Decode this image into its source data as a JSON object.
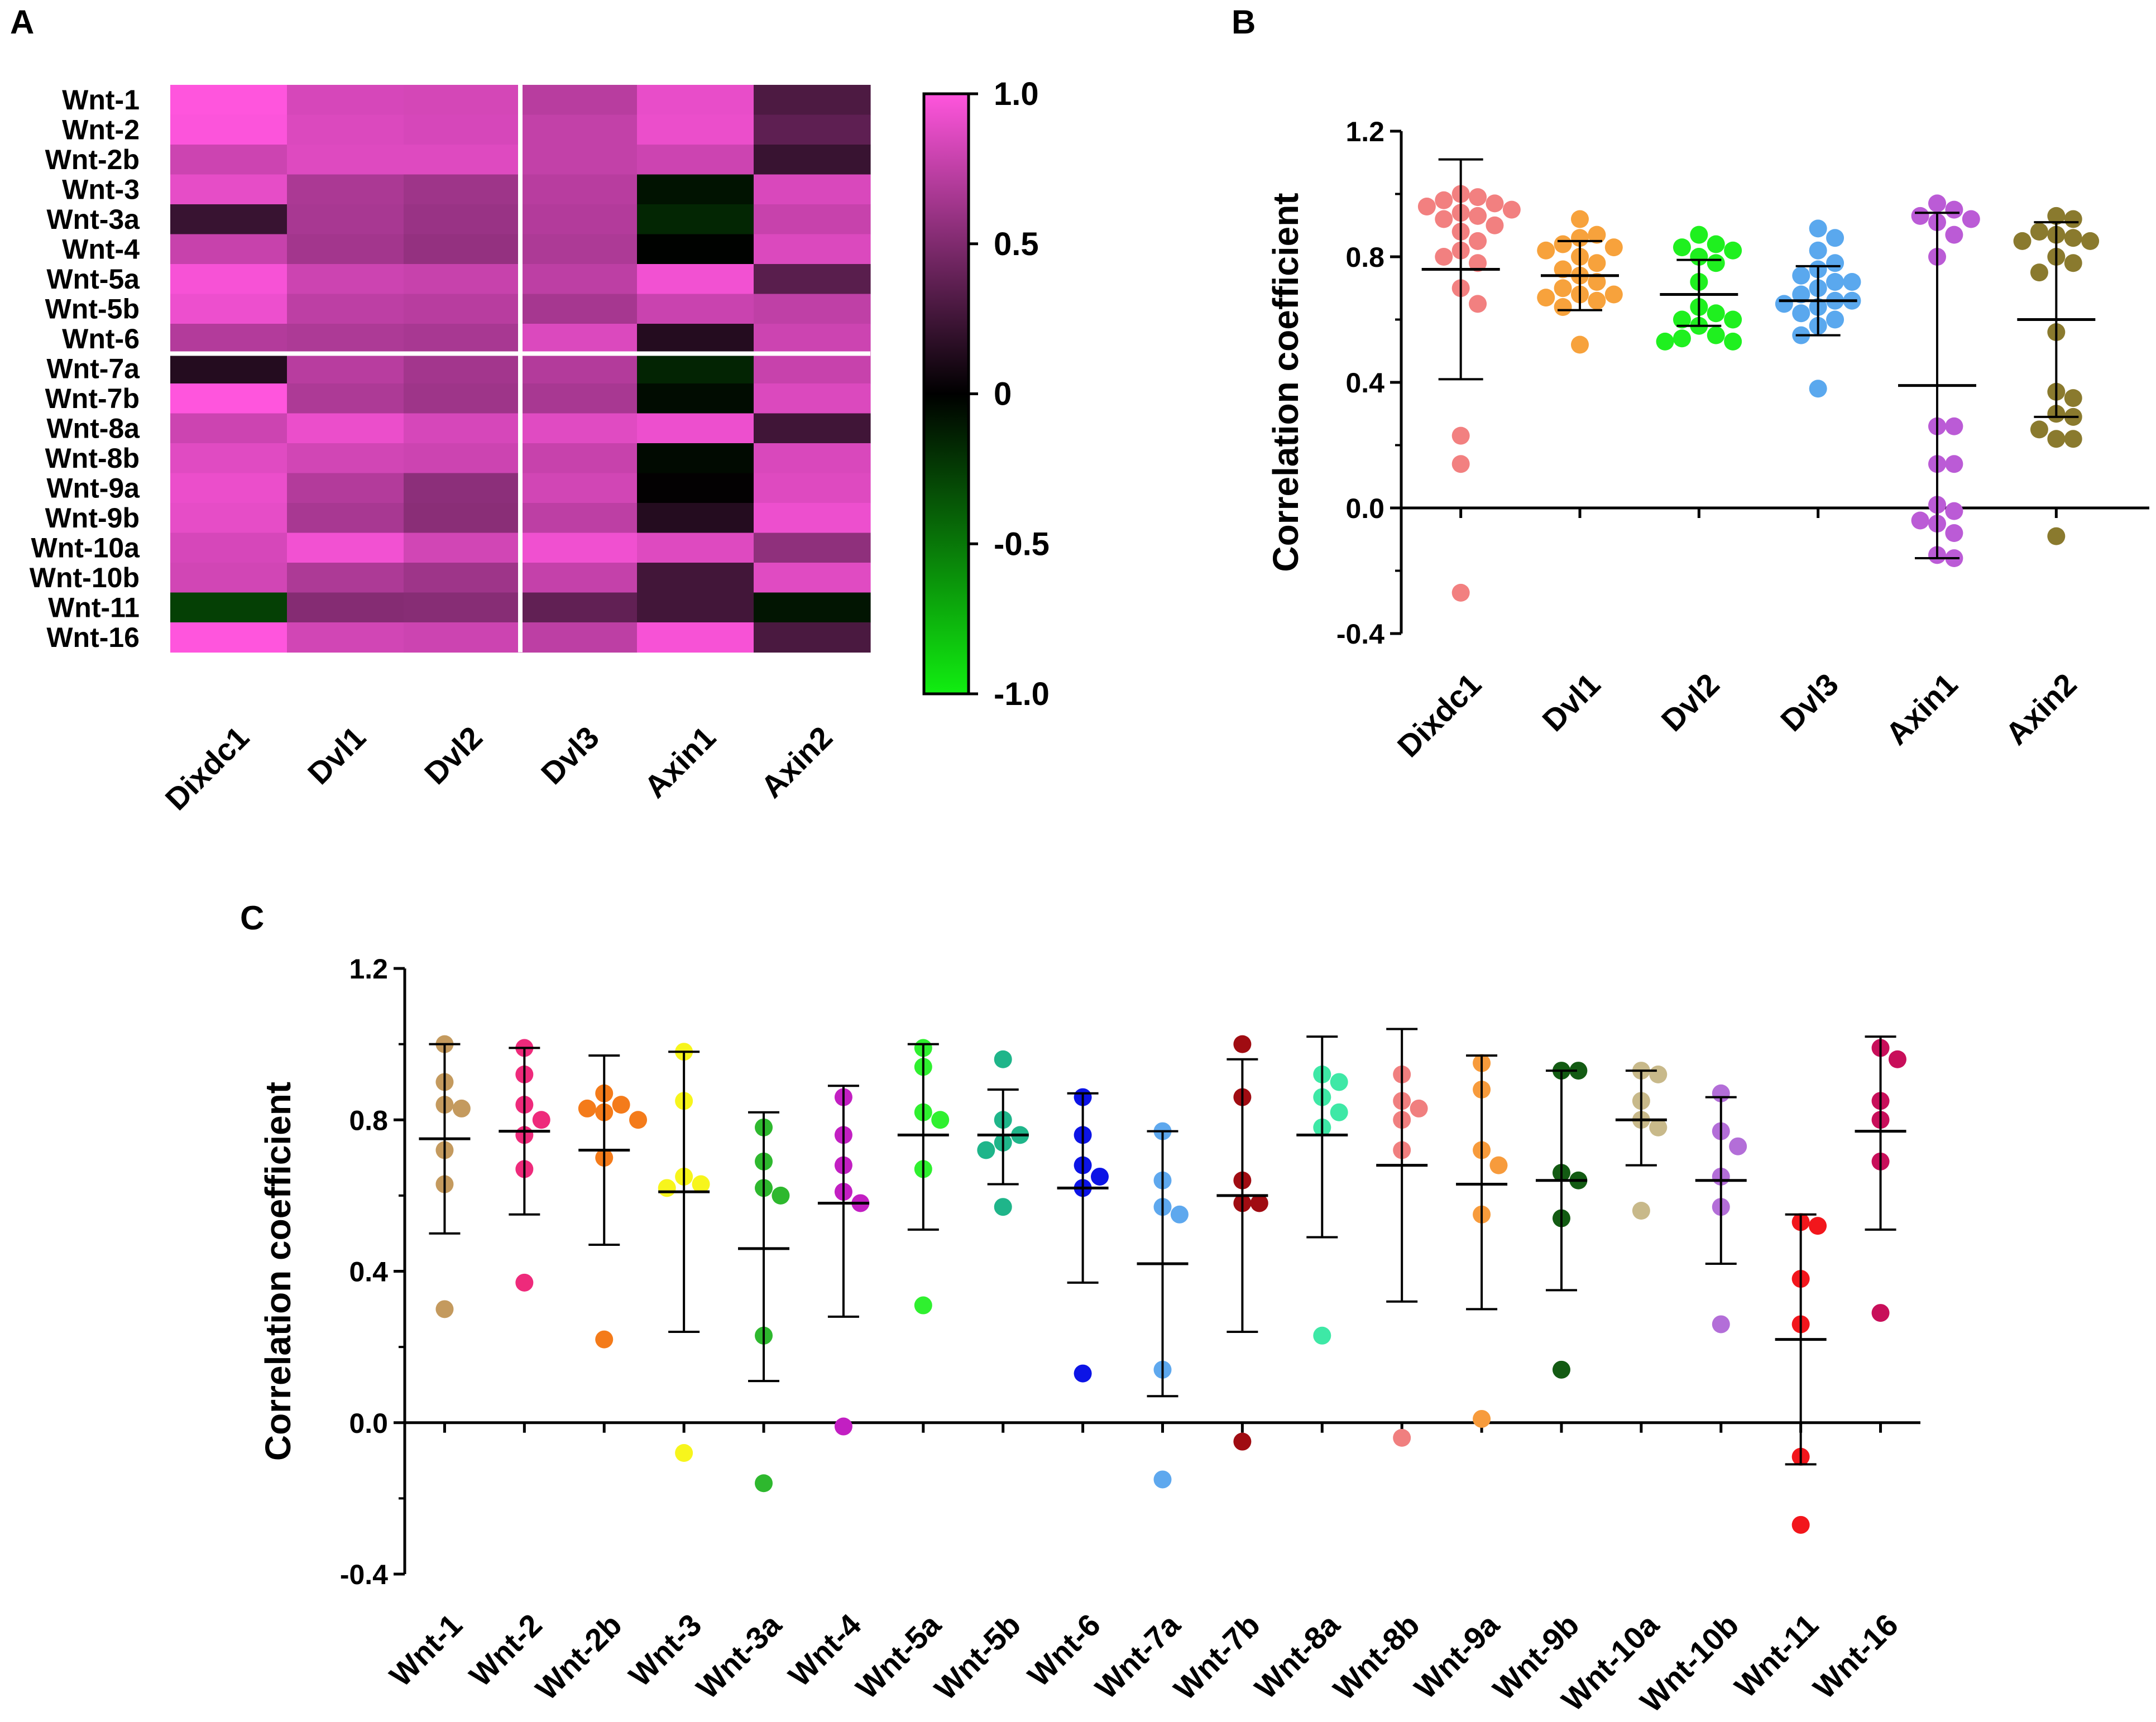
{
  "panels": {
    "a": {
      "label": "A"
    },
    "b": {
      "label": "B"
    },
    "c": {
      "label": "C"
    }
  },
  "chart_data": [
    {
      "id": "A",
      "type": "heatmap",
      "rows": [
        "Wnt-1",
        "Wnt-2",
        "Wnt-2b",
        "Wnt-3",
        "Wnt-3a",
        "Wnt-4",
        "Wnt-5a",
        "Wnt-5b",
        "Wnt-6",
        "Wnt-7a",
        "Wnt-7b",
        "Wnt-8a",
        "Wnt-8b",
        "Wnt-9a",
        "Wnt-9b",
        "Wnt-10a",
        "Wnt-10b",
        "Wnt-11",
        "Wnt-16"
      ],
      "columns": [
        "Dixdc1",
        "Dvl1",
        "Dvl2",
        "Dvl3",
        "Axin1",
        "Axin2"
      ],
      "values": [
        [
          1.0,
          0.84,
          0.83,
          0.72,
          0.91,
          0.3
        ],
        [
          0.99,
          0.86,
          0.84,
          0.76,
          0.92,
          0.37
        ],
        [
          0.8,
          0.87,
          0.87,
          0.76,
          0.8,
          0.22
        ],
        [
          0.9,
          0.67,
          0.62,
          0.72,
          -0.08,
          0.85
        ],
        [
          0.22,
          0.66,
          0.6,
          0.7,
          -0.16,
          0.78
        ],
        [
          0.78,
          0.64,
          0.58,
          0.68,
          -0.01,
          0.86
        ],
        [
          0.97,
          0.8,
          0.78,
          0.74,
          0.95,
          0.35
        ],
        [
          0.93,
          0.74,
          0.72,
          0.65,
          0.79,
          0.75
        ],
        [
          0.7,
          0.68,
          0.66,
          0.86,
          0.14,
          0.8
        ],
        [
          0.14,
          0.72,
          0.64,
          0.7,
          -0.15,
          0.78
        ],
        [
          1.0,
          0.68,
          0.62,
          0.66,
          -0.05,
          0.86
        ],
        [
          0.8,
          0.92,
          0.84,
          0.88,
          0.93,
          0.25
        ],
        [
          0.88,
          0.82,
          0.8,
          0.78,
          -0.04,
          0.85
        ],
        [
          0.92,
          0.7,
          0.55,
          0.82,
          0.01,
          0.87
        ],
        [
          0.9,
          0.66,
          0.54,
          0.74,
          0.14,
          0.93
        ],
        [
          0.84,
          0.95,
          0.82,
          0.94,
          0.87,
          0.56
        ],
        [
          0.82,
          0.68,
          0.62,
          0.77,
          0.26,
          0.88
        ],
        [
          -0.27,
          0.52,
          0.53,
          0.38,
          0.26,
          -0.09
        ],
        [
          1.0,
          0.82,
          0.8,
          0.74,
          0.97,
          0.29
        ]
      ],
      "colorbar": {
        "min": -1.0,
        "max": 1.0,
        "tick_labels": [
          "1.0",
          "0.5",
          "0",
          "-0.5",
          "-1.0"
        ],
        "low_color": "#11ee11",
        "mid_color": "#000000",
        "high_color": "#ff55dd"
      }
    },
    {
      "id": "B",
      "type": "scatter",
      "ylabel": "Correlation coefficient",
      "ylim": [
        -0.4,
        1.2
      ],
      "y_tick_labels": [
        "1.2",
        "0.8",
        "0.4",
        "0.0",
        "-0.4"
      ],
      "groups": [
        {
          "name": "Dixdc1",
          "color": "#f28080",
          "mean": 0.76,
          "upper": 1.11,
          "lower": 0.41,
          "values": [
            1.0,
            0.99,
            0.98,
            0.97,
            0.96,
            0.95,
            0.94,
            0.93,
            0.92,
            0.9,
            0.88,
            0.85,
            0.82,
            0.8,
            0.78,
            0.7,
            0.65,
            0.23,
            0.14,
            -0.27
          ]
        },
        {
          "name": "Dvl1",
          "color": "#f7a23c",
          "mean": 0.74,
          "upper": 0.85,
          "lower": 0.63,
          "values": [
            0.92,
            0.87,
            0.86,
            0.84,
            0.83,
            0.82,
            0.8,
            0.78,
            0.76,
            0.74,
            0.72,
            0.7,
            0.68,
            0.68,
            0.67,
            0.66,
            0.64,
            0.52
          ]
        },
        {
          "name": "Dvl2",
          "color": "#1ff01f",
          "mean": 0.68,
          "upper": 0.79,
          "lower": 0.58,
          "values": [
            0.87,
            0.84,
            0.83,
            0.82,
            0.8,
            0.78,
            0.72,
            0.64,
            0.62,
            0.6,
            0.6,
            0.58,
            0.55,
            0.54,
            0.53,
            0.53
          ]
        },
        {
          "name": "Dvl3",
          "color": "#5aa8ee",
          "mean": 0.66,
          "upper": 0.77,
          "lower": 0.55,
          "values": [
            0.89,
            0.86,
            0.82,
            0.78,
            0.76,
            0.74,
            0.72,
            0.72,
            0.7,
            0.68,
            0.66,
            0.66,
            0.65,
            0.64,
            0.62,
            0.6,
            0.58,
            0.55,
            0.38
          ]
        },
        {
          "name": "Axin1",
          "color": "#bb5bd6",
          "mean": 0.39,
          "upper": 0.94,
          "lower": -0.16,
          "values": [
            0.97,
            0.95,
            0.93,
            0.92,
            0.91,
            0.87,
            0.8,
            0.26,
            0.26,
            0.14,
            0.14,
            0.01,
            -0.01,
            -0.04,
            -0.05,
            -0.08,
            -0.15,
            -0.16
          ]
        },
        {
          "name": "Axin2",
          "color": "#8a7a2e",
          "mean": 0.6,
          "upper": 0.91,
          "lower": 0.29,
          "values": [
            0.93,
            0.92,
            0.88,
            0.87,
            0.86,
            0.85,
            0.85,
            0.8,
            0.78,
            0.75,
            0.56,
            0.37,
            0.35,
            0.3,
            0.29,
            0.25,
            0.22,
            0.22,
            -0.09
          ]
        }
      ]
    },
    {
      "id": "C",
      "type": "scatter",
      "ylabel": "Correlation coefficient",
      "ylim": [
        -0.4,
        1.2
      ],
      "y_tick_labels": [
        "1.2",
        "0.8",
        "0.4",
        "0.0",
        "-0.4"
      ],
      "groups": [
        {
          "name": "Wnt-1",
          "color": "#c49a5e",
          "mean": 0.75,
          "upper": 1.0,
          "lower": 0.5,
          "values": [
            1.0,
            0.9,
            0.84,
            0.83,
            0.72,
            0.63,
            0.3
          ]
        },
        {
          "name": "Wnt-2",
          "color": "#ee2a7b",
          "mean": 0.77,
          "upper": 0.99,
          "lower": 0.55,
          "values": [
            0.99,
            0.92,
            0.84,
            0.8,
            0.76,
            0.67,
            0.37
          ]
        },
        {
          "name": "Wnt-2b",
          "color": "#f47b1a",
          "mean": 0.72,
          "upper": 0.97,
          "lower": 0.47,
          "values": [
            0.87,
            0.84,
            0.83,
            0.82,
            0.8,
            0.7,
            0.22
          ]
        },
        {
          "name": "Wnt-3",
          "color": "#f7f51c",
          "mean": 0.61,
          "upper": 0.98,
          "lower": 0.24,
          "values": [
            0.98,
            0.85,
            0.65,
            0.63,
            0.62,
            -0.08
          ]
        },
        {
          "name": "Wnt-3a",
          "color": "#2eb82e",
          "mean": 0.46,
          "upper": 0.82,
          "lower": 0.11,
          "values": [
            0.78,
            0.69,
            0.62,
            0.6,
            0.23,
            -0.16
          ]
        },
        {
          "name": "Wnt-4",
          "color": "#c21fc2",
          "mean": 0.58,
          "upper": 0.89,
          "lower": 0.28,
          "values": [
            0.86,
            0.76,
            0.68,
            0.61,
            0.58,
            -0.01
          ]
        },
        {
          "name": "Wnt-5a",
          "color": "#2ff02f",
          "mean": 0.76,
          "upper": 1.0,
          "lower": 0.51,
          "values": [
            0.99,
            0.94,
            0.82,
            0.8,
            0.67,
            0.31
          ]
        },
        {
          "name": "Wnt-5b",
          "color": "#1fb58a",
          "mean": 0.76,
          "upper": 0.88,
          "lower": 0.63,
          "values": [
            0.96,
            0.8,
            0.76,
            0.74,
            0.72,
            0.57
          ]
        },
        {
          "name": "Wnt-6",
          "color": "#0c14e6",
          "mean": 0.62,
          "upper": 0.87,
          "lower": 0.37,
          "values": [
            0.86,
            0.76,
            0.68,
            0.65,
            0.62,
            0.13
          ]
        },
        {
          "name": "Wnt-7a",
          "color": "#5ea8ee",
          "mean": 0.42,
          "upper": 0.77,
          "lower": 0.07,
          "values": [
            0.77,
            0.64,
            0.57,
            0.55,
            0.14,
            -0.15
          ]
        },
        {
          "name": "Wnt-7b",
          "color": "#a00c12",
          "mean": 0.6,
          "upper": 0.96,
          "lower": 0.24,
          "values": [
            1.0,
            0.86,
            0.64,
            0.58,
            0.58,
            -0.05
          ]
        },
        {
          "name": "Wnt-8a",
          "color": "#3ee8a6",
          "mean": 0.76,
          "upper": 1.02,
          "lower": 0.49,
          "values": [
            0.92,
            0.9,
            0.86,
            0.82,
            0.78,
            0.23
          ]
        },
        {
          "name": "Wnt-8b",
          "color": "#f07f7f",
          "mean": 0.68,
          "upper": 1.04,
          "lower": 0.32,
          "values": [
            0.92,
            0.85,
            0.83,
            0.8,
            0.72,
            -0.04
          ]
        },
        {
          "name": "Wnt-9a",
          "color": "#f79b3c",
          "mean": 0.63,
          "upper": 0.97,
          "lower": 0.3,
          "values": [
            0.95,
            0.88,
            0.72,
            0.68,
            0.55,
            0.01
          ]
        },
        {
          "name": "Wnt-9b",
          "color": "#135b13",
          "mean": 0.64,
          "upper": 0.93,
          "lower": 0.35,
          "values": [
            0.93,
            0.93,
            0.66,
            0.64,
            0.54,
            0.14
          ]
        },
        {
          "name": "Wnt-10a",
          "color": "#c8b98a",
          "mean": 0.8,
          "upper": 0.93,
          "lower": 0.68,
          "values": [
            0.93,
            0.92,
            0.85,
            0.8,
            0.78,
            0.56
          ]
        },
        {
          "name": "Wnt-10b",
          "color": "#b36ed8",
          "mean": 0.64,
          "upper": 0.86,
          "lower": 0.42,
          "values": [
            0.87,
            0.77,
            0.73,
            0.65,
            0.57,
            0.26
          ]
        },
        {
          "name": "Wnt-11",
          "color": "#f2161c",
          "mean": 0.22,
          "upper": 0.55,
          "lower": -0.11,
          "values": [
            0.53,
            0.52,
            0.38,
            0.26,
            -0.09,
            -0.27
          ]
        },
        {
          "name": "Wnt-16",
          "color": "#c80f5a",
          "mean": 0.77,
          "upper": 1.02,
          "lower": 0.51,
          "values": [
            0.99,
            0.96,
            0.85,
            0.8,
            0.69,
            0.29
          ]
        }
      ]
    }
  ]
}
